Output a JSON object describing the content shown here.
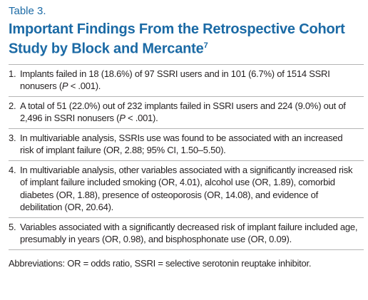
{
  "header": {
    "label": "Table 3.",
    "title": "Important Findings From the Retrospective Cohort Study by Block and Mercante",
    "reference": "7"
  },
  "table": {
    "rows": [
      {
        "number": "1.",
        "segments": [
          {
            "text": "Implants failed in 18 (18.6%) of 97 SSRI users and in 101 (6.7%) of 1514 SSRI nonusers ("
          },
          {
            "text": "P",
            "italic": true
          },
          {
            "text": " < .001)."
          }
        ]
      },
      {
        "number": "2.",
        "segments": [
          {
            "text": "A total of 51 (22.0%) out of 232 implants failed in SSRI users and 224 (9.0%) out of 2,496 in SSRI nonusers ("
          },
          {
            "text": "P",
            "italic": true
          },
          {
            "text": " < .001)."
          }
        ]
      },
      {
        "number": "3.",
        "segments": [
          {
            "text": "In multivariable analysis, SSRIs use was found to be associated with an increased risk of implant failure (OR, 2.88; 95% CI, 1.50–5.50)."
          }
        ]
      },
      {
        "number": "4.",
        "segments": [
          {
            "text": "In multivariable analysis, other variables associated with a significantly increased risk of implant failure included smoking (OR, 4.01), alcohol use (OR, 1.89), comorbid diabetes (OR, 1.88), presence of osteoporosis (OR, 14.08), and evidence of debilitation (OR, 20.64)."
          }
        ]
      },
      {
        "number": "5.",
        "segments": [
          {
            "text": "Variables associated with a significantly decreased risk of implant failure included age, presumably in years (OR, 0.98), and bisphosphonate use (OR, 0.09)."
          }
        ]
      }
    ]
  },
  "footnote": "Abbreviations: OR = odds ratio, SSRI = selective serotonin reuptake inhibitor."
}
